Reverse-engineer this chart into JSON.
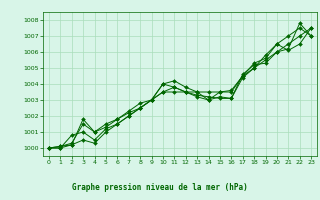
{
  "title": "Graphe pression niveau de la mer (hPa)",
  "bg_color": "#d8f5e8",
  "grid_color": "#aaddbb",
  "line_color": "#006600",
  "marker_color": "#006600",
  "xlim": [
    -0.5,
    23.5
  ],
  "ylim": [
    999.5,
    1008.5
  ],
  "xticks": [
    0,
    1,
    2,
    3,
    4,
    5,
    6,
    7,
    8,
    9,
    10,
    11,
    12,
    13,
    14,
    15,
    16,
    17,
    18,
    19,
    20,
    21,
    22,
    23
  ],
  "yticks": [
    1000,
    1001,
    1002,
    1003,
    1004,
    1005,
    1006,
    1007,
    1008
  ],
  "series1": [
    1000.0,
    1000.0,
    1000.2,
    1000.5,
    1000.3,
    1001.0,
    1001.5,
    1002.0,
    1002.5,
    1003.0,
    1003.5,
    1003.8,
    1003.5,
    1003.3,
    1003.2,
    1003.1,
    1003.1,
    1004.4,
    1005.0,
    1005.8,
    1006.5,
    1007.0,
    1007.5,
    1007.0
  ],
  "series2": [
    1000.0,
    1000.0,
    1000.8,
    1001.0,
    1000.5,
    1001.2,
    1001.5,
    1002.0,
    1002.5,
    1003.0,
    1004.0,
    1004.2,
    1003.8,
    1003.5,
    1003.0,
    1003.2,
    1003.1,
    1004.6,
    1005.2,
    1005.3,
    1006.0,
    1006.2,
    1007.8,
    1007.0
  ],
  "series3": [
    1000.0,
    1000.1,
    1000.3,
    1001.5,
    1001.0,
    1001.3,
    1001.8,
    1002.3,
    1002.8,
    1003.0,
    1004.0,
    1003.8,
    1003.5,
    1003.2,
    1003.0,
    1003.5,
    1003.6,
    1004.5,
    1005.3,
    1005.6,
    1006.5,
    1006.1,
    1006.5,
    1007.5
  ],
  "series4": [
    1000.0,
    1000.1,
    1000.2,
    1001.8,
    1001.0,
    1001.5,
    1001.8,
    1002.2,
    1002.5,
    1003.0,
    1003.5,
    1003.5,
    1003.5,
    1003.5,
    1003.5,
    1003.5,
    1003.5,
    1004.5,
    1005.0,
    1005.5,
    1006.0,
    1006.5,
    1007.0,
    1007.5
  ],
  "xlabel_fontsize": 5.5,
  "ylabel_fontsize": 5.5,
  "tick_fontsize": 4.5,
  "linewidth": 0.7,
  "markersize": 2.0
}
